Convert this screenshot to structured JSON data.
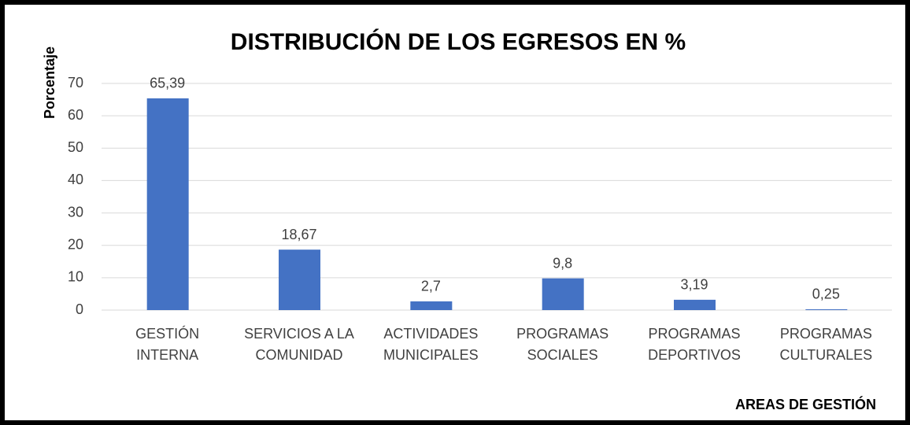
{
  "chart_data": {
    "type": "bar",
    "title": "DISTRIBUCIÓN DE LOS EGRESOS EN %",
    "y_label": "Porcentaje",
    "x_label": "AREAS DE GESTIÓN",
    "categories": [
      [
        "GESTIÓN",
        "INTERNA"
      ],
      [
        "SERVICIOS A LA",
        "COMUNIDAD"
      ],
      [
        "ACTIVIDADES",
        "MUNICIPALES"
      ],
      [
        "PROGRAMAS",
        "SOCIALES"
      ],
      [
        "PROGRAMAS",
        "DEPORTIVOS"
      ],
      [
        "PROGRAMAS",
        "CULTURALES"
      ]
    ],
    "values": [
      65.39,
      18.67,
      2.7,
      9.8,
      3.19,
      0.25
    ],
    "value_labels": [
      "65,39",
      "18,67",
      "2,7",
      "9,8",
      "3,19",
      "0,25"
    ],
    "color": "#4472c4",
    "ylim": [
      0,
      70
    ],
    "yticks": [
      0,
      10,
      20,
      30,
      40,
      50,
      60,
      70
    ],
    "grid": true
  }
}
